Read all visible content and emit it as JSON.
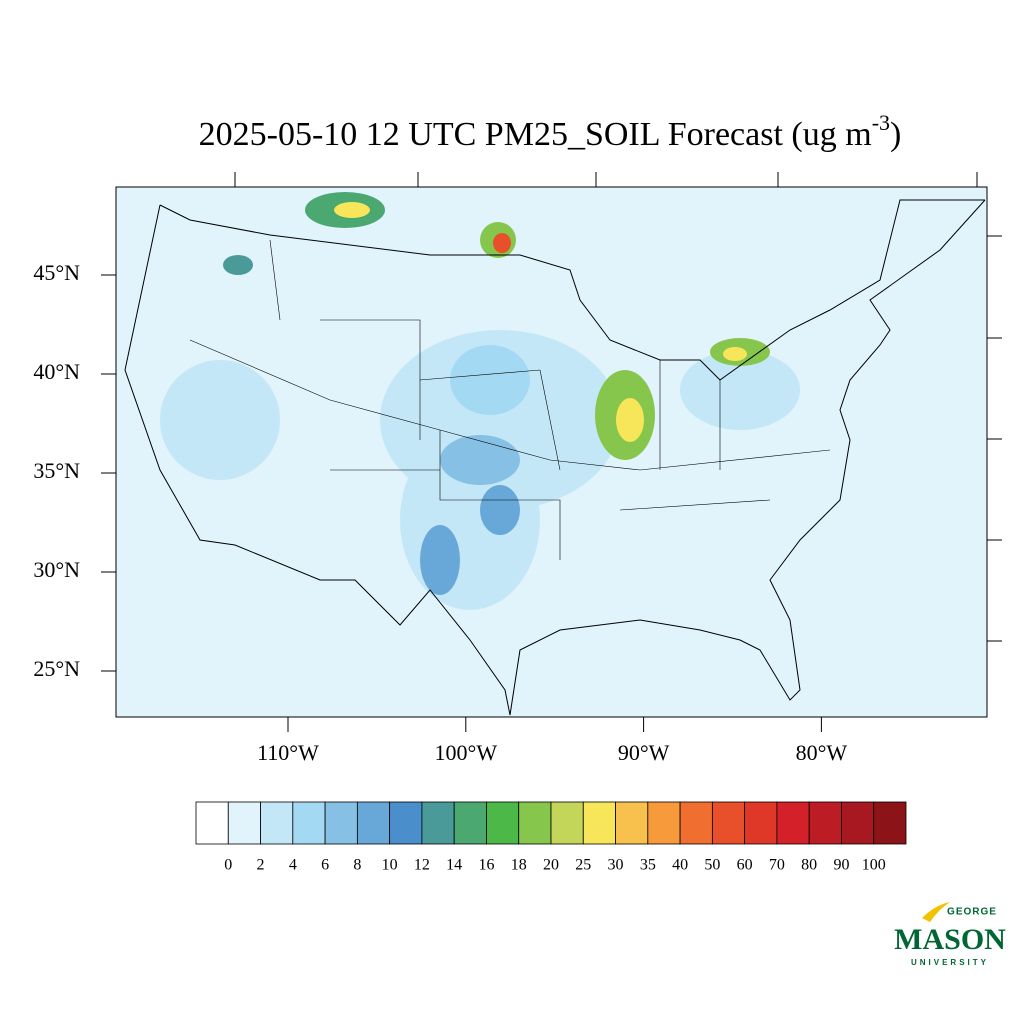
{
  "chart_data": {
    "type": "map",
    "title": "2025-05-10 12 UTC PM25_SOIL Forecast (ug m",
    "title_superscript": "-3",
    "title_end": ")",
    "yticks": [
      {
        "value": 45,
        "label": "45°N"
      },
      {
        "value": 40,
        "label": "40°N"
      },
      {
        "value": 35,
        "label": "35°N"
      },
      {
        "value": 30,
        "label": "30°N"
      },
      {
        "value": 25,
        "label": "25°N"
      }
    ],
    "xticks": [
      {
        "value": -110,
        "label": "110°W"
      },
      {
        "value": -100,
        "label": "100°W"
      },
      {
        "value": -90,
        "label": "90°W"
      },
      {
        "value": -80,
        "label": "80°W"
      }
    ],
    "levels": [
      0,
      2,
      4,
      6,
      8,
      10,
      12,
      14,
      16,
      18,
      20,
      25,
      30,
      35,
      40,
      50,
      60,
      70,
      80,
      90,
      100
    ],
    "colors": [
      "#ffffff",
      "#e1f3fb",
      "#c3e7f7",
      "#a4d9f3",
      "#86c0e5",
      "#67a8d9",
      "#4a8ecb",
      "#4a9a9a",
      "#4aa870",
      "#4cb848",
      "#86c64c",
      "#c3d65a",
      "#f7e55a",
      "#f8c04c",
      "#f69a3c",
      "#f06e30",
      "#e8502c",
      "#e03828",
      "#d42028",
      "#bc1c24",
      "#a81820",
      "#8c1418"
    ]
  },
  "logo": {
    "top": "GEORGE",
    "main": "MASON",
    "bottom": "UNIVERSITY"
  }
}
